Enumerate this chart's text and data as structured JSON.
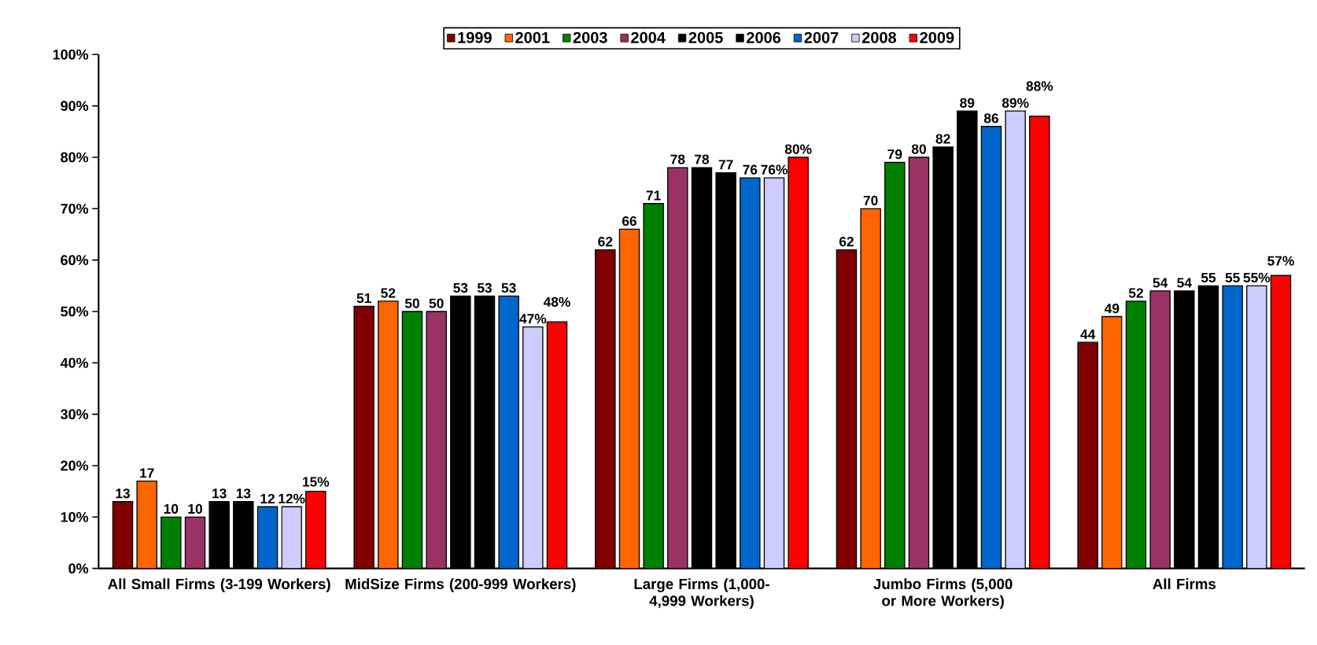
{
  "chart_data": {
    "type": "bar",
    "categories": [
      "All Small Firms (3-199 Workers)",
      "MidSize Firms (200-999 Workers)",
      "Large Firms (1,000-4,999 Workers)",
      "Jumbo Firms (5,000 or More Workers)",
      "All Firms"
    ],
    "series": [
      {
        "name": "1999",
        "color": "#800000",
        "values": [
          13,
          51,
          62,
          62,
          44
        ],
        "value_labels": [
          "13",
          "51",
          "62",
          "62",
          "44"
        ]
      },
      {
        "name": "2001",
        "color": "#ff6600",
        "values": [
          17,
          52,
          66,
          70,
          49
        ],
        "value_labels": [
          "17",
          "52",
          "66",
          "70",
          "49"
        ]
      },
      {
        "name": "2003",
        "color": "#008000",
        "values": [
          10,
          50,
          71,
          79,
          52
        ],
        "value_labels": [
          "10",
          "50",
          "71",
          "79",
          "52"
        ]
      },
      {
        "name": "2004",
        "color": "#993366",
        "values": [
          10,
          50,
          78,
          80,
          54
        ],
        "value_labels": [
          "10",
          "50",
          "78",
          "80",
          "54"
        ]
      },
      {
        "name": "2005",
        "color": "#000000",
        "values": [
          13,
          53,
          78,
          82,
          54
        ],
        "value_labels": [
          "13",
          "53",
          "78",
          "82",
          "54"
        ]
      },
      {
        "name": "2006",
        "color": "#000000",
        "values": [
          13,
          53,
          77,
          89,
          55
        ],
        "value_labels": [
          "13",
          "53",
          "77",
          "89",
          "55"
        ]
      },
      {
        "name": "2007",
        "color": "#0066cc",
        "values": [
          12,
          53,
          76,
          86,
          55
        ],
        "value_labels": [
          "12",
          "53",
          "76",
          "86",
          "55"
        ]
      },
      {
        "name": "2008",
        "color": "#ccccff",
        "values": [
          12,
          47,
          76,
          89,
          55
        ],
        "value_labels": [
          "12%",
          "47%",
          "76%",
          "89%",
          "55%"
        ]
      },
      {
        "name": "2009",
        "color": "#ff0000",
        "values": [
          15,
          48,
          80,
          88,
          57
        ],
        "value_labels": [
          "15%",
          "48%",
          "80%",
          "88%",
          "57%"
        ]
      }
    ],
    "ylim": [
      0,
      100
    ],
    "yticks": [
      {
        "value": 0,
        "label": "0%"
      },
      {
        "value": 10,
        "label": "10%"
      },
      {
        "value": 20,
        "label": "20%"
      },
      {
        "value": 30,
        "label": "30%"
      },
      {
        "value": 40,
        "label": "40%"
      },
      {
        "value": 50,
        "label": "50%"
      },
      {
        "value": 60,
        "label": "60%"
      },
      {
        "value": 70,
        "label": "70%"
      },
      {
        "value": 80,
        "label": "80%"
      },
      {
        "value": 90,
        "label": "90%"
      },
      {
        "value": 100,
        "label": "100%"
      }
    ],
    "grid": false,
    "legend": "top"
  }
}
